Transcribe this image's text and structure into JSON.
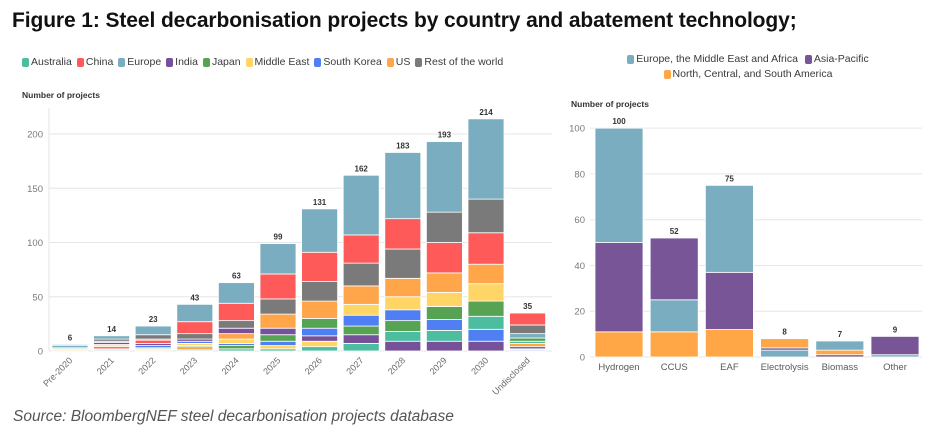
{
  "figure": {
    "title": "Figure 1: Steel decarbonisation projects by country and abatement technology;",
    "source": "Source: BloombergNEF steel decarbonisation projects database"
  },
  "chart_data": [
    {
      "id": "by_country",
      "type": "bar",
      "stacked": true,
      "title": "",
      "xlabel": "",
      "ylabel": "Number of projects",
      "ylim": [
        0,
        224
      ],
      "yticks": [
        0,
        50,
        100,
        150,
        200
      ],
      "grid": true,
      "legend_position": "top",
      "series": [
        {
          "key": "australia",
          "name": "Australia",
          "color": "#4dbd9f"
        },
        {
          "key": "china",
          "name": "China",
          "color": "#ff5a5a"
        },
        {
          "key": "europe",
          "name": "Europe",
          "color": "#79adbf"
        },
        {
          "key": "india",
          "name": "India",
          "color": "#77509a"
        },
        {
          "key": "japan",
          "name": "Japan",
          "color": "#56a354"
        },
        {
          "key": "middle_east",
          "name": "Middle East",
          "color": "#ffd566"
        },
        {
          "key": "south_korea",
          "name": "South Korea",
          "color": "#4f7ff2"
        },
        {
          "key": "us",
          "name": "US",
          "color": "#ffa64a"
        },
        {
          "key": "rest_of_world",
          "name": "Rest of the world",
          "color": "#7a7a7a"
        }
      ],
      "categories": [
        "Pre-2020",
        "2021",
        "2022",
        "2023",
        "2024",
        "2025",
        "2026",
        "2027",
        "2028",
        "2029",
        "2030",
        "Undisclosed"
      ],
      "totals": [
        6,
        14,
        23,
        43,
        63,
        99,
        131,
        162,
        183,
        193,
        214,
        35
      ],
      "stacks_bottom_to_top": [
        [
          [
            "us",
            1
          ],
          [
            "middle_east",
            1
          ],
          [
            "australia",
            1
          ],
          [
            "europe",
            2
          ],
          [
            "south_korea",
            1
          ]
        ],
        [
          [
            "australia",
            1
          ],
          [
            "us",
            1
          ],
          [
            "china",
            2
          ],
          [
            "middle_east",
            1
          ],
          [
            "south_korea",
            1
          ],
          [
            "india",
            2
          ],
          [
            "japan",
            1
          ],
          [
            "rest_of_world",
            2
          ],
          [
            "europe",
            3
          ]
        ],
        [
          [
            "us",
            1
          ],
          [
            "middle_east",
            1
          ],
          [
            "australia",
            1
          ],
          [
            "south_korea",
            2
          ],
          [
            "india",
            2
          ],
          [
            "china",
            3
          ],
          [
            "japan",
            1
          ],
          [
            "rest_of_world",
            4
          ],
          [
            "europe",
            8
          ]
        ],
        [
          [
            "australia",
            1
          ],
          [
            "us",
            3
          ],
          [
            "japan",
            1
          ],
          [
            "middle_east",
            2
          ],
          [
            "south_korea",
            2
          ],
          [
            "india",
            2
          ],
          [
            "rest_of_world",
            5
          ],
          [
            "china",
            11
          ],
          [
            "europe",
            16
          ]
        ],
        [
          [
            "australia",
            2
          ],
          [
            "japan",
            3
          ],
          [
            "south_korea",
            2
          ],
          [
            "middle_east",
            4
          ],
          [
            "us",
            5
          ],
          [
            "india",
            5
          ],
          [
            "rest_of_world",
            7
          ],
          [
            "china",
            16
          ],
          [
            "europe",
            19
          ]
        ],
        [
          [
            "australia",
            2
          ],
          [
            "middle_east",
            3
          ],
          [
            "south_korea",
            4
          ],
          [
            "japan",
            6
          ],
          [
            "india",
            6
          ],
          [
            "us",
            13
          ],
          [
            "rest_of_world",
            14
          ],
          [
            "china",
            23
          ],
          [
            "europe",
            28
          ]
        ],
        [
          [
            "australia",
            4
          ],
          [
            "middle_east",
            5
          ],
          [
            "india",
            5
          ],
          [
            "south_korea",
            7
          ],
          [
            "japan",
            9
          ],
          [
            "us",
            16
          ],
          [
            "rest_of_world",
            18
          ],
          [
            "china",
            27
          ],
          [
            "europe",
            40
          ]
        ],
        [
          [
            "australia",
            7
          ],
          [
            "india",
            8
          ],
          [
            "japan",
            8
          ],
          [
            "south_korea",
            10
          ],
          [
            "middle_east",
            10
          ],
          [
            "us",
            17
          ],
          [
            "rest_of_world",
            21
          ],
          [
            "china",
            26
          ],
          [
            "europe",
            55
          ]
        ],
        [
          [
            "india",
            9
          ],
          [
            "australia",
            9
          ],
          [
            "japan",
            10
          ],
          [
            "south_korea",
            10
          ],
          [
            "middle_east",
            12
          ],
          [
            "us",
            17
          ],
          [
            "rest_of_world",
            27
          ],
          [
            "china",
            28
          ],
          [
            "europe",
            61
          ]
        ],
        [
          [
            "india",
            9
          ],
          [
            "australia",
            10
          ],
          [
            "south_korea",
            10
          ],
          [
            "japan",
            12
          ],
          [
            "middle_east",
            13
          ],
          [
            "us",
            18
          ],
          [
            "china",
            28
          ],
          [
            "rest_of_world",
            28
          ],
          [
            "europe",
            65
          ]
        ],
        [
          [
            "india",
            9
          ],
          [
            "south_korea",
            11
          ],
          [
            "australia",
            12
          ],
          [
            "japan",
            14
          ],
          [
            "middle_east",
            16
          ],
          [
            "us",
            18
          ],
          [
            "china",
            29
          ],
          [
            "rest_of_world",
            31
          ],
          [
            "europe",
            74
          ]
        ],
        [
          [
            "south_korea",
            1
          ],
          [
            "middle_east",
            1
          ],
          [
            "india",
            2
          ],
          [
            "us",
            3
          ],
          [
            "australia",
            2
          ],
          [
            "japan",
            3
          ],
          [
            "europe",
            4
          ],
          [
            "rest_of_world",
            8
          ],
          [
            "china",
            11
          ]
        ]
      ]
    },
    {
      "id": "by_technology",
      "type": "bar",
      "stacked": true,
      "title": "",
      "xlabel": "",
      "ylabel": "Number of projects",
      "ylim": [
        0,
        104
      ],
      "yticks": [
        0,
        20,
        40,
        60,
        80,
        100
      ],
      "grid": true,
      "legend_position": "top",
      "series": [
        {
          "key": "emea",
          "name": "Europe, the Middle East and Africa",
          "color": "#79adbf"
        },
        {
          "key": "apac",
          "name": "Asia-Pacific",
          "color": "#775597"
        },
        {
          "key": "americas",
          "name": "North, Central, and South America",
          "color": "#ffa646"
        }
      ],
      "categories": [
        "Hydrogen",
        "CCUS",
        "EAF",
        "Electrolysis",
        "Biomass",
        "Other"
      ],
      "totals": [
        100,
        52,
        75,
        8,
        7,
        9
      ],
      "stacks_bottom_to_top": [
        [
          [
            "americas",
            11
          ],
          [
            "apac",
            39
          ],
          [
            "emea",
            50
          ]
        ],
        [
          [
            "americas",
            11
          ],
          [
            "emea",
            14
          ],
          [
            "apac",
            27
          ]
        ],
        [
          [
            "americas",
            12
          ],
          [
            "apac",
            25
          ],
          [
            "emea",
            38
          ]
        ],
        [
          [
            "emea",
            3
          ],
          [
            "apac",
            1
          ],
          [
            "americas",
            4
          ]
        ],
        [
          [
            "apac",
            1
          ],
          [
            "americas",
            2
          ],
          [
            "emea",
            4
          ]
        ],
        [
          [
            "emea",
            1
          ],
          [
            "apac",
            8
          ]
        ]
      ]
    }
  ]
}
